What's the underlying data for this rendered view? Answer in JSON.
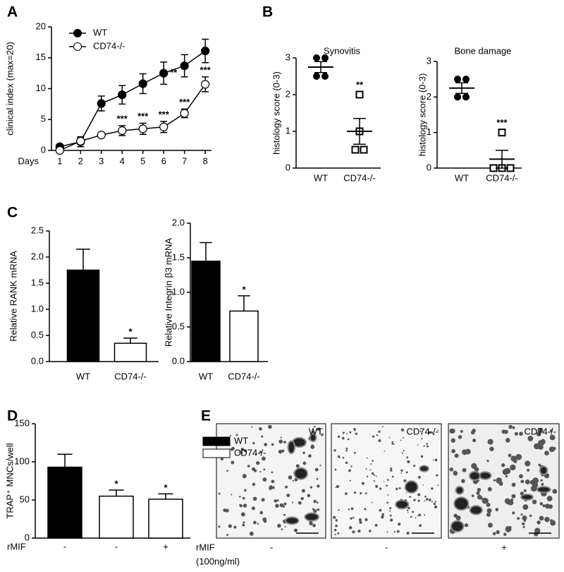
{
  "chart_data": [
    {
      "type": "line",
      "panel_label": "A",
      "ylabel": "clinical index (max=20)",
      "xlabel": "Days",
      "x": [
        1,
        2,
        3,
        4,
        5,
        6,
        7,
        8
      ],
      "xlim": [
        0.6,
        8.3
      ],
      "xticks": [
        1,
        2,
        3,
        4,
        5,
        6,
        7,
        8
      ],
      "ylim": [
        0,
        20
      ],
      "yticks": [
        0,
        5,
        10,
        15,
        20
      ],
      "series": [
        {
          "name": "WT",
          "color": "#000000",
          "marker_fill": "#000000",
          "values": [
            0.6,
            1.4,
            7.6,
            9,
            10.8,
            12.5,
            13.7,
            16.1
          ],
          "errors": [
            0.3,
            0.8,
            1.2,
            1.5,
            1.6,
            1.8,
            1.8,
            1.9
          ],
          "annotations": [
            null,
            null,
            null,
            null,
            null,
            "**",
            null,
            null
          ]
        },
        {
          "name": "CD74-/-",
          "color": "#000000",
          "marker_fill": "#ffffff",
          "values": [
            0,
            1.5,
            2.5,
            3.2,
            3.5,
            3.8,
            6,
            10.7
          ],
          "errors": [
            0,
            0.5,
            0.3,
            0.8,
            0.9,
            0.9,
            0.7,
            1.2
          ],
          "annotations": [
            null,
            null,
            null,
            "***",
            "***",
            "***",
            "***",
            "***"
          ]
        }
      ]
    },
    {
      "type": "dot",
      "panel_label": "B",
      "title": "Synovitis",
      "ylabel": "histology score (0-3)",
      "categories": [
        "WT",
        "CD74-/-"
      ],
      "markers": [
        "circle",
        "square"
      ],
      "ylim": [
        0,
        3
      ],
      "yticks": [
        0,
        1,
        2,
        3
      ],
      "points": [
        [
          3,
          3,
          2.5,
          2.5
        ],
        [
          2,
          1,
          0.5,
          0.5
        ]
      ],
      "means": [
        2.75,
        1
      ],
      "errors": [
        0.15,
        0.35
      ],
      "annotations": [
        null,
        "**"
      ]
    },
    {
      "type": "dot",
      "title": "Bone damage",
      "ylabel": "histology score (0-3)",
      "categories": [
        "WT",
        "CD74-/-"
      ],
      "markers": [
        "circle",
        "square"
      ],
      "ylim": [
        0,
        3
      ],
      "yticks": [
        0,
        1,
        2,
        3
      ],
      "points": [
        [
          2.5,
          2.5,
          2,
          2
        ],
        [
          1,
          0,
          0,
          0
        ]
      ],
      "means": [
        2.25,
        0.25
      ],
      "errors": [
        0.15,
        0.25
      ],
      "annotations": [
        null,
        "***"
      ]
    },
    {
      "type": "bar",
      "panel_label": "C",
      "ylabel": "Relative RANK mRNA",
      "categories": [
        "WT",
        "CD74-/-"
      ],
      "values": [
        1.75,
        0.35
      ],
      "errors": [
        0.4,
        0.1
      ],
      "colors": [
        "#000000",
        "#ffffff"
      ],
      "annotations": [
        null,
        "*"
      ],
      "ylim": [
        0,
        2.5
      ],
      "yticks": [
        {
          "value": 0,
          "label": "0.0"
        },
        0.5,
        {
          "value": 1,
          "label": "1.0"
        },
        1.5,
        {
          "value": 2,
          "label": "2.0"
        },
        2.5
      ]
    },
    {
      "type": "bar",
      "ylabel": "Relative Integrin β3 mRNA",
      "categories": [
        "WT",
        "CD74-/-"
      ],
      "values": [
        1.45,
        0.73
      ],
      "errors": [
        0.27,
        0.22
      ],
      "colors": [
        "#000000",
        "#ffffff"
      ],
      "annotations": [
        null,
        "*"
      ],
      "ylim": [
        0,
        2
      ],
      "yticks": [
        {
          "value": 0,
          "label": "0.0"
        },
        0.5,
        {
          "value": 1,
          "label": "1.0"
        },
        1.5,
        {
          "value": 2,
          "label": "2.0"
        }
      ]
    },
    {
      "type": "bar",
      "panel_label": "D",
      "ylabel": "TRAP⁺ MNCs/well",
      "xlabel": "rMIF",
      "categories": [
        "-",
        "-",
        "+"
      ],
      "series": [
        {
          "name": "WT",
          "color": "#000000",
          "values": [
            93,
            null,
            null
          ],
          "errors": [
            17,
            null,
            null
          ]
        },
        {
          "name": "CD74-/-",
          "color": "#ffffff",
          "values": [
            null,
            55,
            51
          ],
          "errors": [
            null,
            8,
            7
          ]
        }
      ],
      "annotations": [
        null,
        "*",
        "*"
      ],
      "ylim": [
        0,
        150
      ],
      "yticks": [
        0,
        50,
        100,
        150
      ]
    }
  ],
  "panel_e": {
    "panel_label": "E",
    "images": [
      {
        "label": "WT"
      },
      {
        "label": "CD74-/-"
      },
      {
        "label": "CD74-/-"
      }
    ],
    "treatment_label": "rMIF",
    "treatment_values": [
      "-",
      "-",
      "+"
    ],
    "concentration": "(100ng/ml)"
  }
}
